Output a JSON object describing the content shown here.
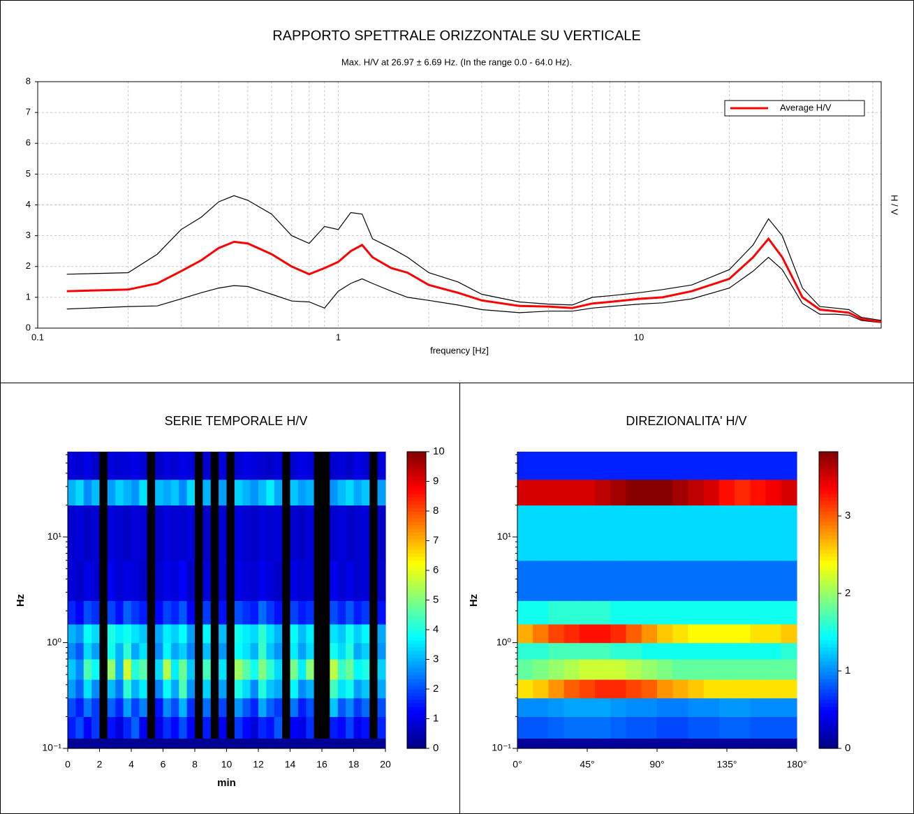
{
  "chart_data": [
    {
      "type": "line",
      "title": "RAPPORTO SPETTRALE ORIZZONTALE SU VERTICALE",
      "subtitle": "Max. H/V at 26.97 ± 6.69 Hz. (In the range 0.0 - 64.0 Hz).",
      "x_label": "frequency [Hz]",
      "y_label": "H / V",
      "xscale": "log",
      "xlim": [
        0.1,
        64
      ],
      "xticks": [
        0.1,
        1,
        10
      ],
      "ylim": [
        0,
        8
      ],
      "yticks": [
        0,
        1,
        2,
        3,
        4,
        5,
        6,
        7,
        8
      ],
      "grid": true,
      "legend": "upper right",
      "x": [
        0.125,
        0.2,
        0.25,
        0.3,
        0.35,
        0.4,
        0.45,
        0.5,
        0.6,
        0.7,
        0.8,
        0.9,
        1.0,
        1.1,
        1.2,
        1.3,
        1.5,
        1.7,
        2,
        2.5,
        3,
        4,
        5,
        6,
        7,
        8,
        10,
        12,
        15,
        20,
        24,
        27,
        30,
        35,
        40,
        45,
        50,
        55,
        64
      ],
      "series": [
        {
          "color": "#000000",
          "values": [
            1.75,
            1.8,
            2.4,
            3.2,
            3.6,
            4.1,
            4.3,
            4.15,
            3.7,
            3.0,
            2.75,
            3.3,
            3.2,
            3.75,
            3.7,
            2.9,
            2.6,
            2.3,
            1.8,
            1.5,
            1.1,
            0.85,
            0.78,
            0.75,
            1.0,
            1.05,
            1.15,
            1.25,
            1.4,
            1.9,
            2.7,
            3.55,
            3.0,
            1.3,
            0.7,
            0.65,
            0.6,
            0.35,
            0.25
          ]
        },
        {
          "color": "#000000",
          "values": [
            0.62,
            0.7,
            0.72,
            0.95,
            1.15,
            1.3,
            1.38,
            1.35,
            1.1,
            0.88,
            0.85,
            0.65,
            1.2,
            1.45,
            1.6,
            1.45,
            1.2,
            1.0,
            0.9,
            0.75,
            0.6,
            0.5,
            0.55,
            0.55,
            0.65,
            0.7,
            0.78,
            0.82,
            0.95,
            1.3,
            1.85,
            2.3,
            1.9,
            0.8,
            0.45,
            0.45,
            0.42,
            0.25,
            0.18
          ]
        },
        {
          "name": "Average H/V",
          "color": "#ff0000",
          "values": [
            1.2,
            1.25,
            1.45,
            1.85,
            2.2,
            2.6,
            2.8,
            2.75,
            2.4,
            2.0,
            1.75,
            1.95,
            2.15,
            2.5,
            2.7,
            2.3,
            1.95,
            1.8,
            1.4,
            1.15,
            0.9,
            0.72,
            0.7,
            0.65,
            0.8,
            0.85,
            0.95,
            1.0,
            1.2,
            1.6,
            2.3,
            2.9,
            2.3,
            1.0,
            0.6,
            0.55,
            0.5,
            0.3,
            0.2
          ]
        }
      ]
    },
    {
      "type": "heatmap",
      "title": "SERIE TEMPORALE H/V",
      "x_label": "min",
      "y_label": "Hz",
      "xlim": [
        0,
        20
      ],
      "xticks": [
        0,
        2,
        4,
        6,
        8,
        10,
        12,
        14,
        16,
        18,
        20
      ],
      "yscale": "log",
      "ylim": [
        0.1,
        64
      ],
      "yticks": [
        {
          "value": 0.1,
          "label": "10⁻¹"
        },
        {
          "value": 1,
          "label": "10⁰"
        },
        {
          "value": 10,
          "label": "10¹"
        }
      ],
      "zlim": [
        0,
        10
      ],
      "zticks": [
        0,
        1,
        2,
        3,
        4,
        5,
        6,
        7,
        8,
        9,
        10
      ],
      "xbins": [
        0,
        0.5,
        1,
        1.5,
        2,
        2.5,
        3,
        3.5,
        4,
        4.5,
        5,
        5.5,
        6,
        6.5,
        7,
        7.5,
        8,
        8.5,
        9,
        9.5,
        10,
        10.5,
        11,
        11.5,
        12,
        12.5,
        13,
        13.5,
        14,
        14.5,
        15,
        15.5,
        16,
        16.5,
        17,
        17.5,
        18,
        18.5,
        19,
        19.5,
        20
      ],
      "ybins": [
        0.1,
        0.125,
        0.2,
        0.3,
        0.45,
        0.7,
        1.0,
        1.5,
        2.5,
        6,
        20,
        35,
        64
      ],
      "z": [
        [
          0.2,
          0.2,
          0.2,
          0.2,
          0.2,
          0.2,
          0.2,
          0.2,
          0.2,
          0.2,
          0.2,
          0.2,
          0.2,
          0.2,
          0.2,
          0.2,
          0.2,
          0.2,
          0.2,
          0.2,
          0.2,
          0.2,
          0.2,
          0.2,
          0.2,
          0.2,
          0.2,
          0.2,
          0.2,
          0.2,
          0.2,
          0.2,
          0.2,
          0.2,
          0.2,
          0.2,
          0.2,
          0.2,
          0.2,
          0.2
        ],
        [
          1.5,
          2.0,
          1.2,
          1.8,
          null,
          1.4,
          0.9,
          1.6,
          2.2,
          1.1,
          null,
          1.0,
          1.7,
          1.3,
          2.0,
          1.2,
          null,
          1.5,
          null,
          1.1,
          null,
          1.8,
          1.3,
          0.9,
          1.6,
          1.4,
          2.1,
          null,
          1.2,
          1.0,
          1.7,
          null,
          null,
          1.5,
          1.3,
          1.9,
          1.1,
          1.4,
          null,
          1.6
        ],
        [
          2.0,
          1.5,
          2.4,
          1.8,
          null,
          2.2,
          1.6,
          2.8,
          1.9,
          2.5,
          null,
          1.4,
          2.6,
          2.0,
          3.0,
          1.7,
          null,
          2.3,
          null,
          1.9,
          null,
          2.7,
          2.1,
          1.6,
          2.9,
          2.2,
          1.8,
          null,
          2.4,
          1.5,
          2.0,
          null,
          null,
          3.2,
          2.1,
          2.6,
          1.8,
          2.3,
          null,
          2.0
        ],
        [
          2.8,
          2.2,
          3.5,
          2.6,
          null,
          3.1,
          2.4,
          4.2,
          3.0,
          3.6,
          null,
          2.5,
          3.8,
          2.9,
          4.5,
          2.7,
          null,
          3.3,
          null,
          2.8,
          null,
          4.0,
          3.4,
          2.6,
          4.1,
          3.2,
          2.9,
          null,
          3.7,
          2.6,
          3.0,
          null,
          null,
          4.4,
          3.5,
          3.9,
          2.8,
          3.2,
          null,
          2.9
        ],
        [
          3.2,
          2.6,
          4.5,
          3.8,
          null,
          5.2,
          3.0,
          5.8,
          4.1,
          4.6,
          null,
          3.4,
          5.5,
          3.6,
          4.8,
          3.2,
          null,
          4.4,
          null,
          3.5,
          null,
          5.3,
          4.6,
          3.9,
          5.0,
          4.2,
          3.4,
          null,
          4.9,
          3.6,
          5.1,
          null,
          null,
          5.6,
          4.3,
          4.8,
          3.7,
          4.0,
          null,
          3.3
        ],
        [
          2.6,
          2.1,
          3.4,
          2.8,
          null,
          3.9,
          3.0,
          4.2,
          2.9,
          3.5,
          null,
          2.6,
          3.7,
          2.9,
          3.3,
          2.5,
          null,
          3.1,
          null,
          2.7,
          null,
          3.8,
          3.5,
          3.0,
          4.3,
          3.2,
          2.7,
          null,
          3.6,
          2.8,
          3.4,
          null,
          null,
          3.9,
          3.4,
          4.1,
          2.9,
          3.3,
          null,
          2.7
        ],
        [
          3.0,
          2.7,
          3.8,
          3.4,
          null,
          4.0,
          3.6,
          3.9,
          3.5,
          3.2,
          null,
          2.9,
          3.6,
          3.3,
          3.8,
          2.8,
          null,
          3.7,
          null,
          3.1,
          null,
          3.9,
          3.6,
          3.4,
          4.2,
          3.5,
          3.0,
          null,
          3.8,
          3.1,
          3.6,
          null,
          null,
          3.5,
          3.2,
          3.9,
          3.3,
          3.7,
          null,
          2.9
        ],
        [
          1.6,
          1.2,
          2.0,
          1.7,
          null,
          1.9,
          1.4,
          2.2,
          1.8,
          1.5,
          null,
          1.3,
          1.9,
          1.6,
          2.1,
          1.2,
          null,
          1.8,
          null,
          1.4,
          null,
          2.0,
          1.7,
          1.5,
          2.3,
          1.8,
          1.4,
          null,
          1.9,
          1.5,
          1.7,
          null,
          null,
          2.0,
          1.6,
          2.1,
          1.5,
          1.8,
          null,
          1.4
        ],
        [
          0.9,
          0.7,
          1.0,
          0.8,
          null,
          1.1,
          0.8,
          1.0,
          0.9,
          0.7,
          null,
          0.8,
          1.0,
          0.9,
          1.2,
          0.7,
          null,
          0.9,
          null,
          0.8,
          null,
          1.0,
          0.9,
          0.8,
          1.1,
          0.9,
          0.7,
          null,
          1.0,
          0.8,
          0.9,
          null,
          null,
          1.1,
          0.8,
          1.0,
          0.8,
          0.9,
          null,
          0.8
        ],
        [
          0.8,
          0.9,
          0.7,
          0.8,
          null,
          0.9,
          0.8,
          0.7,
          0.9,
          0.8,
          null,
          0.7,
          0.9,
          0.8,
          0.8,
          0.9,
          null,
          0.7,
          null,
          0.8,
          null,
          0.9,
          0.8,
          0.7,
          0.9,
          0.8,
          0.9,
          null,
          0.8,
          0.7,
          0.9,
          null,
          null,
          0.8,
          0.9,
          0.7,
          0.8,
          0.9,
          null,
          0.7
        ],
        [
          3.0,
          3.4,
          2.6,
          3.1,
          null,
          2.8,
          3.3,
          3.0,
          2.7,
          3.5,
          null,
          3.1,
          2.9,
          3.2,
          2.6,
          3.4,
          null,
          3.0,
          null,
          2.8,
          null,
          3.3,
          3.0,
          2.7,
          3.1,
          3.6,
          2.9,
          null,
          3.2,
          2.8,
          3.0,
          null,
          null,
          2.7,
          3.1,
          3.4,
          2.9,
          3.2,
          null,
          2.8
        ],
        [
          0.9,
          0.8,
          1.0,
          0.7,
          null,
          0.9,
          0.8,
          0.9,
          1.0,
          0.8,
          null,
          0.7,
          0.9,
          0.8,
          1.0,
          0.9,
          null,
          0.8,
          null,
          0.9,
          null,
          0.8,
          1.0,
          0.9,
          0.8,
          0.7,
          0.9,
          null,
          0.8,
          1.0,
          0.9,
          null,
          null,
          0.8,
          0.9,
          0.7,
          1.0,
          0.8,
          null,
          0.9
        ]
      ]
    },
    {
      "type": "heatmap",
      "title": "DIREZIONALITA' H/V",
      "y_label": "Hz",
      "xlim": [
        0,
        180
      ],
      "xticks": [
        {
          "value": 0,
          "label": "0°"
        },
        {
          "value": 45,
          "label": "45°"
        },
        {
          "value": 90,
          "label": "90°"
        },
        {
          "value": 135,
          "label": "135°"
        },
        {
          "value": 180,
          "label": "180°"
        }
      ],
      "yscale": "log",
      "ylim": [
        0.1,
        64
      ],
      "yticks": [
        {
          "value": 0.1,
          "label": "10⁻¹"
        },
        {
          "value": 1,
          "label": "10⁰"
        },
        {
          "value": 10,
          "label": "10¹"
        }
      ],
      "zlim": [
        0,
        3.83
      ],
      "zticks": [
        0,
        1,
        2,
        3
      ],
      "xbins": [
        0,
        10,
        20,
        30,
        40,
        50,
        60,
        70,
        80,
        90,
        100,
        110,
        120,
        130,
        140,
        150,
        160,
        170,
        180
      ],
      "ybins": [
        0.1,
        0.125,
        0.2,
        0.3,
        0.45,
        0.7,
        1.0,
        1.5,
        2.5,
        6,
        20,
        35,
        64
      ],
      "z": [
        [
          0.1,
          0.1,
          0.1,
          0.1,
          0.1,
          0.1,
          0.1,
          0.1,
          0.1,
          0.1,
          0.1,
          0.1,
          0.1,
          0.1,
          0.1,
          0.1,
          0.1,
          0.1
        ],
        [
          0.8,
          0.8,
          0.85,
          0.9,
          0.9,
          0.9,
          0.85,
          0.8,
          0.8,
          0.75,
          0.75,
          0.8,
          0.8,
          0.85,
          0.85,
          0.8,
          0.8,
          0.8
        ],
        [
          1.0,
          1.0,
          1.05,
          1.1,
          1.1,
          1.1,
          1.05,
          1.0,
          1.0,
          0.95,
          0.95,
          1.0,
          1.0,
          1.05,
          1.05,
          1.0,
          1.0,
          1.0
        ],
        [
          2.5,
          2.6,
          2.8,
          3.0,
          3.1,
          3.2,
          3.2,
          3.1,
          3.0,
          2.8,
          2.7,
          2.6,
          2.5,
          2.5,
          2.5,
          2.5,
          2.5,
          2.5
        ],
        [
          1.8,
          1.9,
          2.0,
          2.1,
          2.2,
          2.2,
          2.2,
          2.1,
          2.0,
          1.9,
          1.8,
          1.8,
          1.8,
          1.8,
          1.8,
          1.8,
          1.8,
          1.8
        ],
        [
          1.6,
          1.6,
          1.7,
          1.7,
          1.7,
          1.7,
          1.6,
          1.6,
          1.5,
          1.5,
          1.5,
          1.5,
          1.5,
          1.5,
          1.5,
          1.5,
          1.5,
          1.6
        ],
        [
          2.7,
          2.9,
          3.1,
          3.2,
          3.3,
          3.3,
          3.2,
          3.0,
          2.8,
          2.6,
          2.5,
          2.4,
          2.4,
          2.4,
          2.4,
          2.5,
          2.5,
          2.6
        ],
        [
          1.5,
          1.5,
          1.6,
          1.6,
          1.6,
          1.6,
          1.5,
          1.5,
          1.5,
          1.5,
          1.5,
          1.5,
          1.5,
          1.5,
          1.5,
          1.5,
          1.5,
          1.5
        ],
        [
          0.9,
          0.9,
          0.9,
          0.9,
          0.9,
          0.9,
          0.9,
          0.9,
          0.9,
          0.9,
          0.9,
          0.9,
          0.9,
          0.9,
          0.9,
          0.9,
          0.9,
          0.9
        ],
        [
          1.3,
          1.3,
          1.3,
          1.3,
          1.3,
          1.3,
          1.3,
          1.3,
          1.3,
          1.3,
          1.3,
          1.3,
          1.3,
          1.3,
          1.3,
          1.3,
          1.3,
          1.3
        ],
        [
          3.5,
          3.5,
          3.5,
          3.5,
          3.5,
          3.6,
          3.7,
          3.8,
          3.8,
          3.8,
          3.7,
          3.6,
          3.5,
          3.3,
          3.2,
          3.3,
          3.4,
          3.5
        ],
        [
          0.6,
          0.6,
          0.6,
          0.6,
          0.6,
          0.6,
          0.6,
          0.6,
          0.6,
          0.6,
          0.6,
          0.6,
          0.6,
          0.6,
          0.6,
          0.6,
          0.6,
          0.6
        ]
      ]
    }
  ]
}
